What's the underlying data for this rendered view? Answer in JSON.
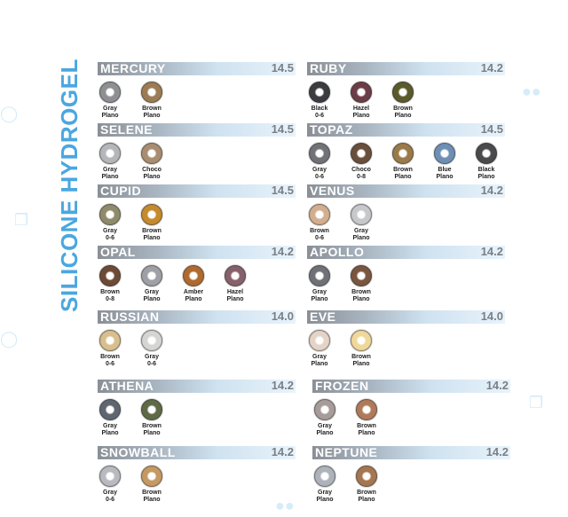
{
  "title": "SILICONE HYDROGEL",
  "sections": [
    {
      "name": "MERCURY",
      "dia": "14.5",
      "lenses": [
        {
          "line1": "Gray",
          "line2": "Plano",
          "color": "#8d8f93"
        },
        {
          "line1": "Brown",
          "line2": "Plano",
          "color": "#9c7b55"
        }
      ]
    },
    {
      "name": "RUBY",
      "dia": "14.2",
      "lenses": [
        {
          "line1": "Black",
          "line2": "0-6",
          "color": "#3b3c40"
        },
        {
          "line1": "Hazel",
          "line2": "Plano",
          "color": "#6b3d47"
        },
        {
          "line1": "Brown",
          "line2": "Plano",
          "color": "#5a5a2c"
        }
      ]
    },
    {
      "name": "SELENE",
      "dia": "14.5",
      "lenses": [
        {
          "line1": "Gray",
          "line2": "Plano",
          "color": "#b4b6b9"
        },
        {
          "line1": "Choco",
          "line2": "Plano",
          "color": "#a88d70"
        }
      ]
    },
    {
      "name": "TOPAZ",
      "dia": "14.5",
      "lenses": [
        {
          "line1": "Gray",
          "line2": "0-6",
          "color": "#6f7277"
        },
        {
          "line1": "Choco",
          "line2": "0-8",
          "color": "#6a4e3c"
        },
        {
          "line1": "Brown",
          "line2": "Plano",
          "color": "#9a7a48"
        },
        {
          "line1": "Blue",
          "line2": "Plano",
          "color": "#6d8fb4"
        },
        {
          "line1": "Black",
          "line2": "Plano",
          "color": "#4a4a4c"
        }
      ]
    },
    {
      "name": "CUPID",
      "dia": "14.5",
      "lenses": [
        {
          "line1": "Gray",
          "line2": "0-6",
          "color": "#8f8a6a"
        },
        {
          "line1": "Brown",
          "line2": "Plano",
          "color": "#c48a2e"
        }
      ]
    },
    {
      "name": "VENUS",
      "dia": "14.2",
      "lenses": [
        {
          "line1": "Brown",
          "line2": "0-6",
          "color": "#d3ae8e"
        },
        {
          "line1": "Gray",
          "line2": "Plano",
          "color": "#c7c8cc"
        }
      ]
    },
    {
      "name": "OPAL",
      "dia": "14.2",
      "lenses": [
        {
          "line1": "Brown",
          "line2": "0-8",
          "color": "#6c4a36"
        },
        {
          "line1": "Gray",
          "line2": "Plano",
          "color": "#9ea0a5"
        },
        {
          "line1": "Amber",
          "line2": "Plano",
          "color": "#b06a2e"
        },
        {
          "line1": "Hazel",
          "line2": "Plano",
          "color": "#86606a"
        }
      ]
    },
    {
      "name": "APOLLO",
      "dia": "14.2",
      "lenses": [
        {
          "line1": "Gray",
          "line2": "Plano",
          "color": "#6f7176"
        },
        {
          "line1": "Brown",
          "line2": "Plano",
          "color": "#7a5640"
        }
      ]
    },
    {
      "name": "RUSSIAN",
      "dia": "14.0",
      "lenses": [
        {
          "line1": "Brown",
          "line2": "0-6",
          "color": "#d9bf8e"
        },
        {
          "line1": "Gray",
          "line2": "0-6",
          "color": "#d5d6d3"
        }
      ]
    },
    {
      "name": "EVE",
      "dia": "14.0",
      "lenses": [
        {
          "line1": "Gray",
          "line2": "Plano",
          "color": "#e4d4c8"
        },
        {
          "line1": "Brown",
          "line2": "Plano",
          "color": "#efd89a"
        }
      ]
    },
    {
      "name": "ATHENA",
      "dia": "14.2",
      "lenses": [
        {
          "line1": "Gray",
          "line2": "Plano",
          "color": "#5f6670"
        },
        {
          "line1": "Brown",
          "line2": "Plano",
          "color": "#5e6a46"
        }
      ]
    },
    {
      "name": "FROZEN",
      "dia": "14.2",
      "lenses": [
        {
          "line1": "Gray",
          "line2": "Plano",
          "color": "#a79c9a"
        },
        {
          "line1": "Brown",
          "line2": "Plano",
          "color": "#b07a5a"
        }
      ]
    },
    {
      "name": "SNOWBALL",
      "dia": "14.2",
      "lenses": [
        {
          "line1": "Gray",
          "line2": "0-6",
          "color": "#b9babf"
        },
        {
          "line1": "Brown",
          "line2": "Plano",
          "color": "#c49a62"
        }
      ]
    },
    {
      "name": "NEPTUNE",
      "dia": "14.2",
      "lenses": [
        {
          "line1": "Gray",
          "line2": "Plano",
          "color": "#aeb3bb"
        },
        {
          "line1": "Brown",
          "line2": "Plano",
          "color": "#a57650"
        }
      ]
    }
  ]
}
